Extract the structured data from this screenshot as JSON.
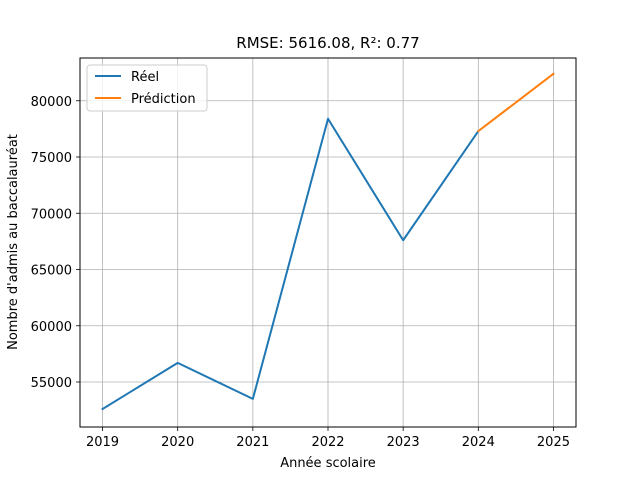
{
  "chart_data": {
    "type": "line",
    "title": "RMSE: 5616.08, R²: 0.77",
    "xlabel": "Année scolaire",
    "ylabel": "Nombre d'admis au baccalauréat",
    "x_ticks": [
      "2019",
      "2020",
      "2021",
      "2022",
      "2023",
      "2024",
      "2025"
    ],
    "y_ticks": [
      55000,
      60000,
      65000,
      70000,
      75000,
      80000
    ],
    "y_tick_labels": [
      "55000",
      "60000",
      "65000",
      "70000",
      "75000",
      "80000"
    ],
    "xlim": [
      2018.7,
      2025.3
    ],
    "ylim": [
      51000,
      83800
    ],
    "grid": true,
    "legend_position": "top-left",
    "series": [
      {
        "name": "Réel",
        "color": "#1f77b4",
        "x": [
          2019,
          2020,
          2021,
          2022,
          2023,
          2024
        ],
        "values": [
          52600,
          56700,
          53500,
          78400,
          67600,
          77300
        ]
      },
      {
        "name": "Prédiction",
        "color": "#ff7f0e",
        "x": [
          2024,
          2025
        ],
        "values": [
          77300,
          82400
        ]
      }
    ]
  }
}
